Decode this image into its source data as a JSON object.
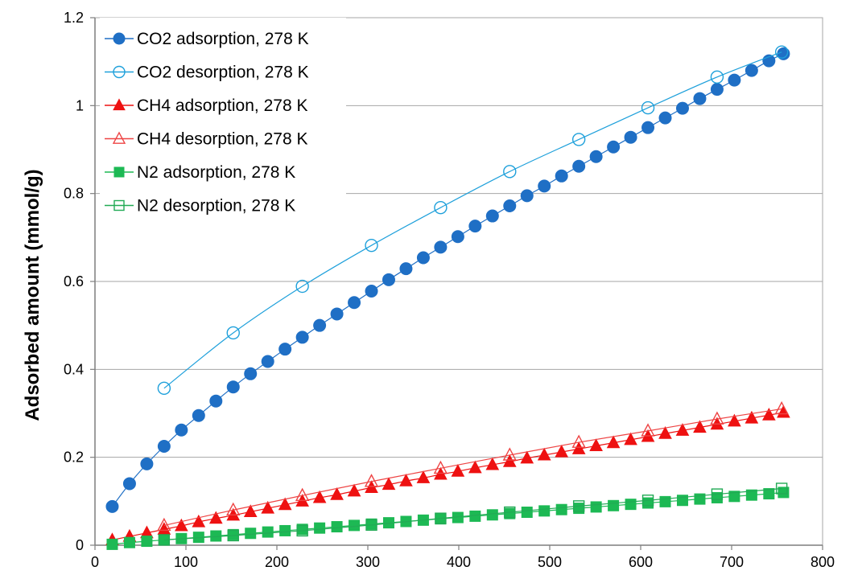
{
  "chart_data": {
    "type": "scatter",
    "title": "",
    "xlabel": "",
    "ylabel": "Adsorbed amount (mmol/g)",
    "xlim": [
      0,
      800
    ],
    "ylim": [
      0,
      1.2
    ],
    "xticks": [
      0,
      100,
      200,
      300,
      400,
      500,
      600,
      700,
      800
    ],
    "yticks": [
      0,
      0.2,
      0.4,
      0.6,
      0.8,
      1,
      1.2
    ],
    "xtick_labels": [
      "0",
      "100",
      "200",
      "300",
      "400",
      "500",
      "600",
      "700",
      "800"
    ],
    "ytick_labels": [
      "0",
      "0.2",
      "0.4",
      "0.6",
      "0.8",
      "1",
      "1.2"
    ],
    "grid": "horizontal",
    "legend_position": "top-left",
    "series": [
      {
        "name": "CO2 adsorption, 278 K",
        "color": "#1f6fc5",
        "marker": "circle",
        "filled": true,
        "x": [
          19,
          38,
          57,
          76,
          95,
          114,
          133,
          152,
          171,
          190,
          209,
          228,
          247,
          266,
          285,
          304,
          323,
          342,
          361,
          380,
          399,
          418,
          437,
          456,
          475,
          494,
          513,
          532,
          551,
          570,
          589,
          608,
          627,
          646,
          665,
          684,
          703,
          722,
          741,
          757
        ],
        "y": [
          0.088,
          0.14,
          0.185,
          0.225,
          0.262,
          0.295,
          0.328,
          0.36,
          0.39,
          0.418,
          0.446,
          0.473,
          0.5,
          0.526,
          0.552,
          0.578,
          0.604,
          0.629,
          0.654,
          0.678,
          0.702,
          0.726,
          0.749,
          0.772,
          0.795,
          0.817,
          0.84,
          0.862,
          0.884,
          0.906,
          0.928,
          0.95,
          0.972,
          0.994,
          1.016,
          1.037,
          1.058,
          1.08,
          1.102,
          1.118
        ]
      },
      {
        "name": "CO2 desorption, 278 K",
        "color": "#1ea0db",
        "marker": "circle",
        "filled": false,
        "x": [
          76,
          152,
          228,
          304,
          380,
          456,
          532,
          608,
          684,
          755
        ],
        "y": [
          0.357,
          0.483,
          0.589,
          0.682,
          0.768,
          0.85,
          0.923,
          0.995,
          1.065,
          1.122
        ]
      },
      {
        "name": "CH4 adsorption, 278 K",
        "color": "#ee1111",
        "marker": "triangle",
        "filled": true,
        "x": [
          19,
          38,
          57,
          76,
          95,
          114,
          133,
          152,
          171,
          190,
          209,
          228,
          247,
          266,
          285,
          304,
          323,
          342,
          361,
          380,
          399,
          418,
          437,
          456,
          475,
          494,
          513,
          532,
          551,
          570,
          589,
          608,
          627,
          646,
          665,
          684,
          703,
          722,
          741,
          757
        ],
        "y": [
          0.012,
          0.02,
          0.028,
          0.036,
          0.044,
          0.053,
          0.061,
          0.068,
          0.076,
          0.084,
          0.092,
          0.1,
          0.108,
          0.115,
          0.123,
          0.131,
          0.138,
          0.146,
          0.153,
          0.161,
          0.168,
          0.176,
          0.183,
          0.19,
          0.198,
          0.205,
          0.212,
          0.219,
          0.226,
          0.233,
          0.24,
          0.247,
          0.254,
          0.261,
          0.268,
          0.275,
          0.282,
          0.289,
          0.296,
          0.302
        ]
      },
      {
        "name": "CH4 desorption, 278 K",
        "color": "#ee4444",
        "marker": "triangle",
        "filled": false,
        "x": [
          76,
          152,
          228,
          304,
          380,
          456,
          532,
          608,
          684,
          755
        ],
        "y": [
          0.045,
          0.08,
          0.113,
          0.145,
          0.175,
          0.205,
          0.234,
          0.26,
          0.287,
          0.31
        ]
      },
      {
        "name": "N2 adsorption, 278 K",
        "color": "#1db954",
        "marker": "square",
        "filled": true,
        "x": [
          19,
          38,
          57,
          76,
          95,
          114,
          133,
          152,
          171,
          190,
          209,
          228,
          247,
          266,
          285,
          304,
          323,
          342,
          361,
          380,
          399,
          418,
          437,
          456,
          475,
          494,
          513,
          532,
          551,
          570,
          589,
          608,
          627,
          646,
          665,
          684,
          703,
          722,
          741,
          757
        ],
        "y": [
          0.002,
          0.006,
          0.009,
          0.012,
          0.015,
          0.018,
          0.021,
          0.024,
          0.027,
          0.03,
          0.033,
          0.036,
          0.039,
          0.042,
          0.045,
          0.048,
          0.051,
          0.054,
          0.057,
          0.06,
          0.063,
          0.066,
          0.069,
          0.072,
          0.075,
          0.078,
          0.081,
          0.084,
          0.087,
          0.09,
          0.093,
          0.096,
          0.099,
          0.102,
          0.105,
          0.108,
          0.111,
          0.114,
          0.117,
          0.12
        ]
      },
      {
        "name": "N2 desorption, 278 K",
        "color": "#22aa55",
        "marker": "square",
        "filled": false,
        "x": [
          76,
          152,
          228,
          304,
          380,
          456,
          532,
          608,
          684,
          755
        ],
        "y": [
          0.012,
          0.022,
          0.033,
          0.046,
          0.061,
          0.075,
          0.089,
          0.102,
          0.116,
          0.129
        ]
      }
    ]
  }
}
